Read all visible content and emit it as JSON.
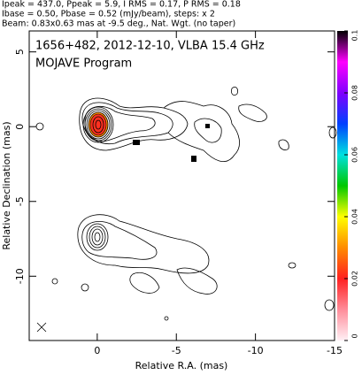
{
  "chart_data": {
    "type": "contour",
    "header": [
      "Ipeak = 437.0, Ppeak = 5.9, I RMS = 0.17, P RMS = 0.18",
      "Ibase = 0.50, Pbase = 0.52 (mJy/beam), steps: x 2",
      "Beam: 0.83x0.63 mas at -9.5 deg., Nat. Wgt. (no taper)"
    ],
    "title": "1656+482, 2012-12-10, VLBA 15.4 GHz",
    "subtitle": "MOJAVE Program",
    "xlabel": "Relative R.A. (mas)",
    "ylabel": "Relative Declination (mas)",
    "xlim": [
      4.3,
      -15
    ],
    "xticks": [
      0,
      -5,
      -10,
      -15
    ],
    "ylim": [
      -14.3,
      6.4
    ],
    "yticks": [
      5,
      0,
      -5,
      -10
    ],
    "colorbar": {
      "lim": [
        0,
        0.1
      ],
      "ticks": [
        0,
        0.02,
        0.04,
        0.06,
        0.08,
        0.1
      ]
    }
  }
}
